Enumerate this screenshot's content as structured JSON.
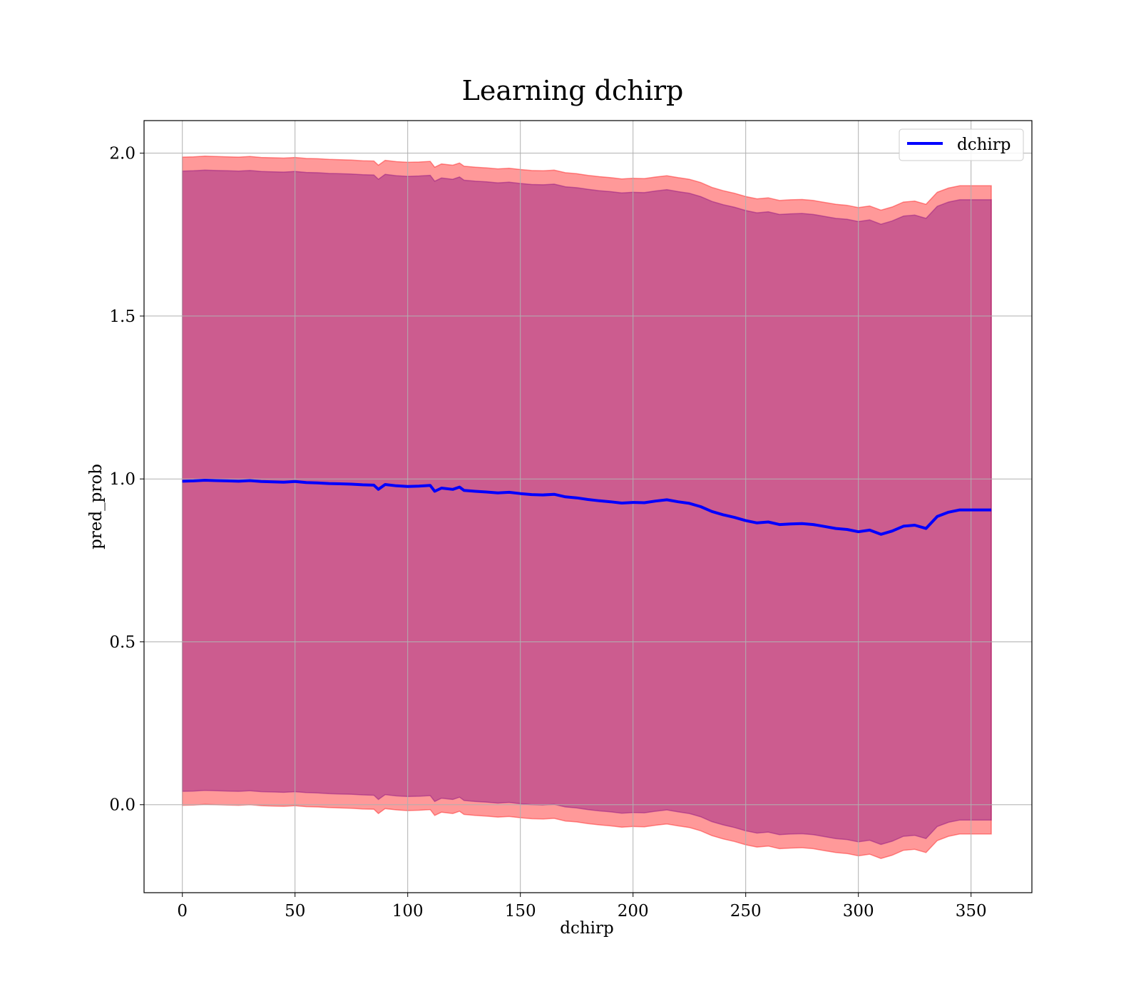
{
  "chart_data": {
    "type": "line",
    "title": "Learning dchirp",
    "xlabel": "dchirp",
    "ylabel": "pred_prob",
    "xlim": [
      -17,
      377
    ],
    "ylim": [
      -0.27,
      2.1
    ],
    "xticks": [
      0,
      50,
      100,
      150,
      200,
      250,
      300,
      350
    ],
    "yticks": [
      0.0,
      0.5,
      1.0,
      1.5,
      2.0
    ],
    "xtick_labels": [
      "0",
      "50",
      "100",
      "150",
      "200",
      "250",
      "300",
      "350"
    ],
    "ytick_labels": [
      "0.0",
      "0.5",
      "1.0",
      "1.5",
      "2.0"
    ],
    "grid": true,
    "legend_position": "top-right",
    "series": [
      {
        "name": "dchirp",
        "color": "#0000ff",
        "x": [
          0,
          5,
          10,
          15,
          20,
          25,
          30,
          35,
          40,
          45,
          50,
          55,
          60,
          65,
          70,
          75,
          80,
          85,
          87,
          90,
          95,
          100,
          105,
          110,
          112,
          115,
          120,
          123,
          125,
          130,
          135,
          140,
          145,
          150,
          155,
          160,
          165,
          170,
          175,
          180,
          185,
          190,
          195,
          200,
          205,
          210,
          215,
          220,
          225,
          230,
          235,
          240,
          245,
          250,
          255,
          260,
          265,
          270,
          275,
          280,
          285,
          290,
          295,
          300,
          305,
          310,
          315,
          320,
          325,
          330,
          335,
          340,
          345,
          350,
          355,
          359
        ],
        "values": [
          0.993,
          0.994,
          0.996,
          0.995,
          0.994,
          0.993,
          0.995,
          0.992,
          0.991,
          0.99,
          0.992,
          0.989,
          0.988,
          0.986,
          0.985,
          0.984,
          0.982,
          0.981,
          0.968,
          0.983,
          0.979,
          0.977,
          0.978,
          0.98,
          0.962,
          0.972,
          0.968,
          0.975,
          0.965,
          0.962,
          0.96,
          0.957,
          0.959,
          0.955,
          0.952,
          0.951,
          0.953,
          0.945,
          0.942,
          0.937,
          0.933,
          0.93,
          0.926,
          0.928,
          0.927,
          0.932,
          0.936,
          0.93,
          0.925,
          0.915,
          0.9,
          0.89,
          0.882,
          0.872,
          0.865,
          0.868,
          0.86,
          0.862,
          0.863,
          0.86,
          0.854,
          0.848,
          0.845,
          0.838,
          0.843,
          0.83,
          0.84,
          0.855,
          0.858,
          0.848,
          0.885,
          0.898,
          0.905,
          0.905,
          0.905,
          0.905
        ]
      }
    ],
    "bands": [
      {
        "color": "#ff0000",
        "alpha": 0.4,
        "offset": 0.995
      },
      {
        "color": "#800080",
        "alpha": 0.4,
        "offset": 0.952
      }
    ]
  }
}
